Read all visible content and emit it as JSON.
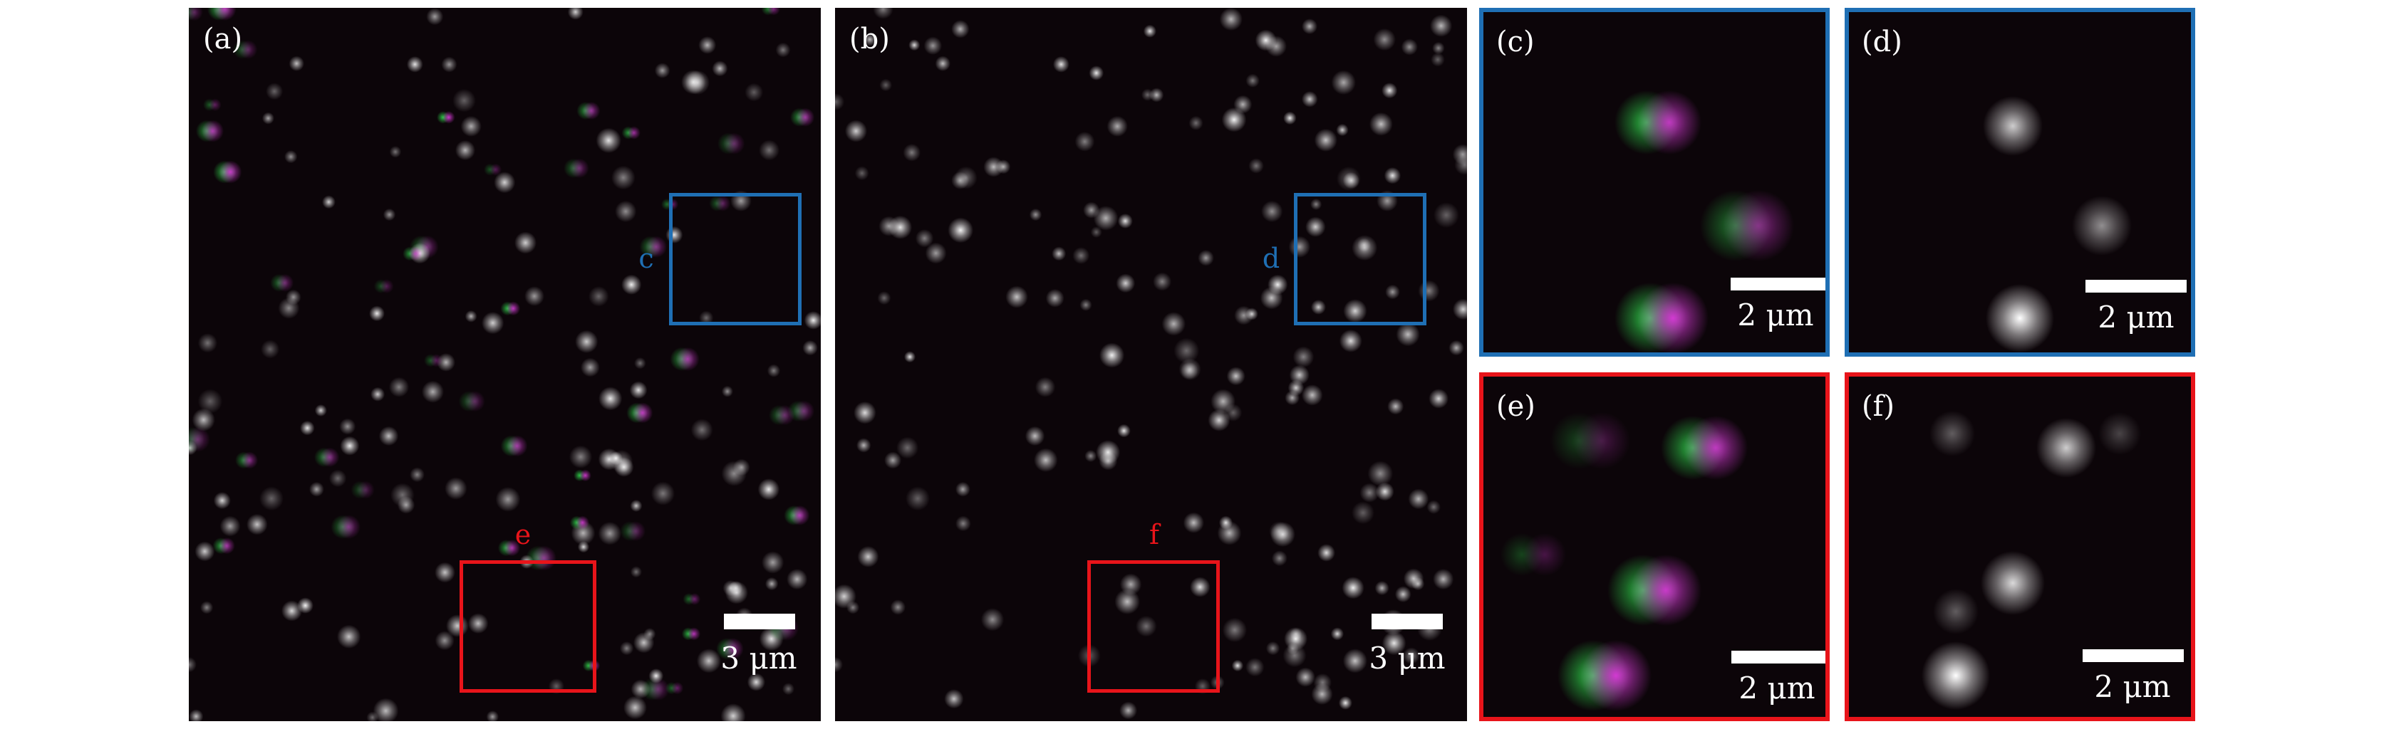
{
  "colors": {
    "inset_c_d_border": "#1f6fb4",
    "inset_e_f_border": "#e8141a",
    "background": "#0c0509",
    "channel_1": "#2fd24a",
    "channel_2": "#d23ad2"
  },
  "panels": {
    "a": {
      "label": "(a)",
      "scale_bar": "3 μm",
      "box_c_label": "c",
      "box_e_label": "e"
    },
    "b": {
      "label": "(b)",
      "scale_bar": "3 μm",
      "box_d_label": "d",
      "box_f_label": "f"
    },
    "c": {
      "label": "(c)",
      "scale_bar": "2 μm"
    },
    "d": {
      "label": "(d)",
      "scale_bar": "2 μm"
    },
    "e": {
      "label": "(e)",
      "scale_bar": "2 μm"
    },
    "f": {
      "label": "(f)",
      "scale_bar": "2 μm"
    }
  }
}
